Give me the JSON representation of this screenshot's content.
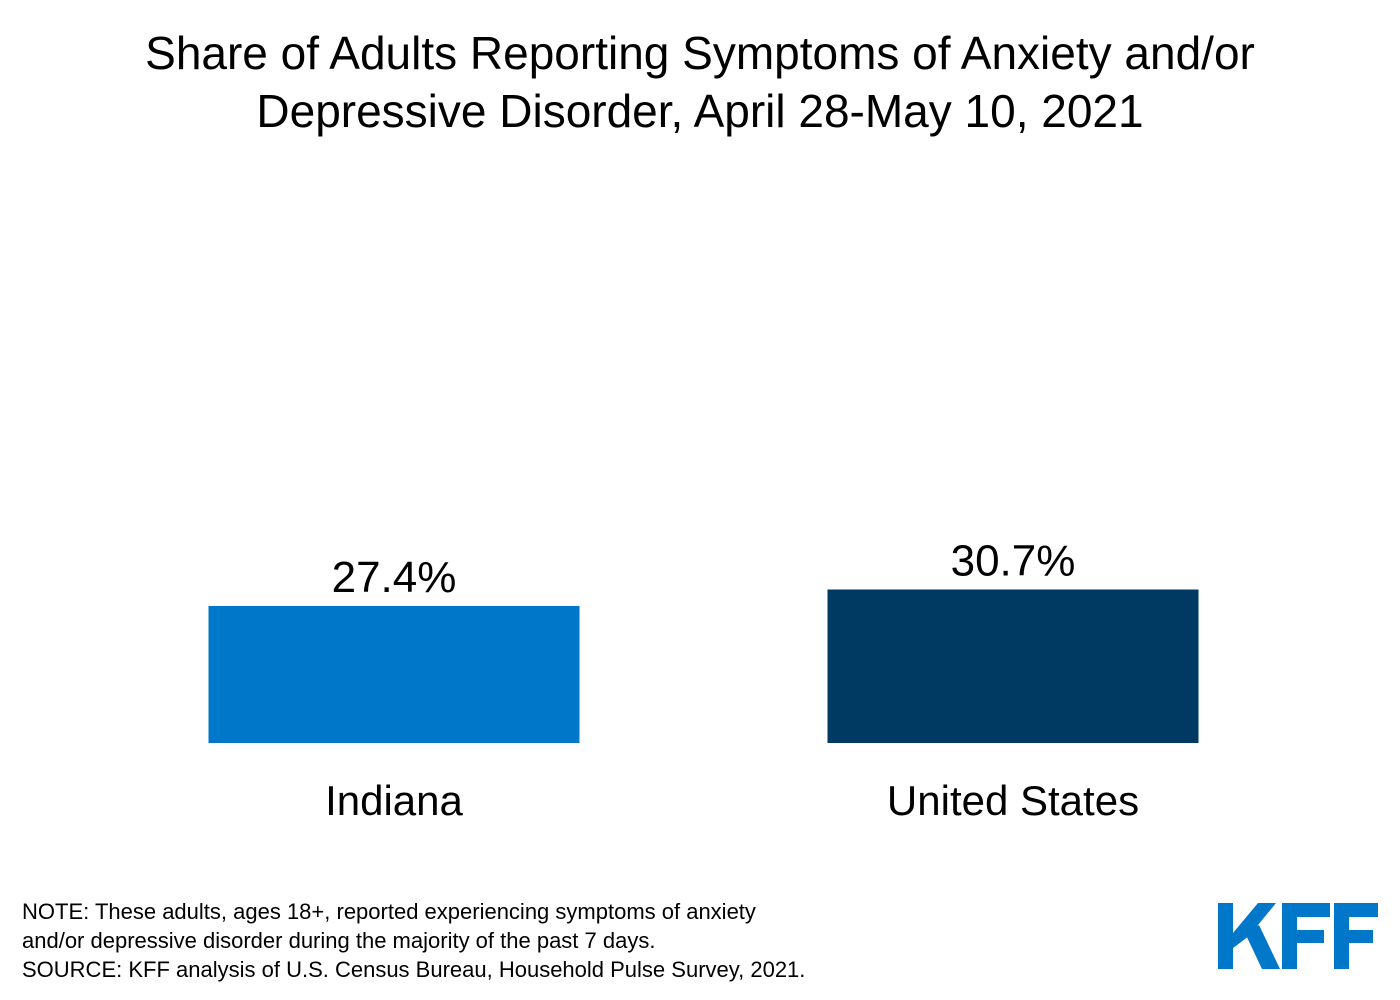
{
  "title": {
    "line1": "Share of Adults Reporting Symptoms of Anxiety and/or",
    "line2": "Depressive Disorder, April 28-May 10, 2021"
  },
  "chart_data": {
    "type": "bar",
    "title": "Share of Adults Reporting Symptoms of Anxiety and/or Depressive Disorder, April 28-May 10, 2021",
    "categories": [
      "Indiana",
      "United States"
    ],
    "values": [
      27.4,
      30.7
    ],
    "data_labels": [
      "27.4%",
      "30.7%"
    ],
    "colors": [
      "#0077c8",
      "#003a63"
    ],
    "xlabel": "",
    "ylabel": "",
    "ylim": [
      0,
      100
    ],
    "grid": false,
    "legend": "none"
  },
  "footnote": {
    "note_line1": "NOTE: These adults, ages 18+, reported experiencing symptoms of anxiety",
    "note_line2": "and/or depressive disorder during the majority of the past 7 days.",
    "source": "SOURCE: KFF analysis of U.S. Census Bureau, Household Pulse Survey, 2021."
  },
  "logo": {
    "text": "KFF",
    "color": "#0077c8"
  }
}
